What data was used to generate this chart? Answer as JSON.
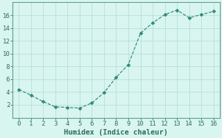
{
  "x": [
    0,
    1,
    2,
    3,
    4,
    5,
    6,
    7,
    8,
    9,
    10,
    11,
    12,
    13,
    14,
    15,
    16
  ],
  "y": [
    4.4,
    3.5,
    2.5,
    1.7,
    1.6,
    1.5,
    2.3,
    3.9,
    6.3,
    8.3,
    13.2,
    14.8,
    16.1,
    16.8,
    15.6,
    16.1,
    16.6
  ],
  "line_color": "#2e8b7a",
  "marker_color": "#2e8b7a",
  "bg_color": "#d8f5f0",
  "grid_color": "#b8ddd8",
  "xlabel": "Humidex (Indice chaleur)",
  "xlabel_color": "#2e6b5a",
  "tick_color": "#2e6b5a",
  "spine_color": "#5a9a8a",
  "xlim": [
    -0.5,
    16.5
  ],
  "ylim": [
    0,
    18
  ],
  "xticks": [
    0,
    1,
    2,
    3,
    4,
    5,
    6,
    7,
    8,
    9,
    10,
    11,
    12,
    13,
    14,
    15,
    16
  ],
  "yticks": [
    2,
    4,
    6,
    8,
    10,
    12,
    14,
    16
  ],
  "xlabel_fontsize": 7.5,
  "tick_fontsize": 6.5,
  "figsize": [
    3.2,
    2.0
  ],
  "dpi": 100
}
